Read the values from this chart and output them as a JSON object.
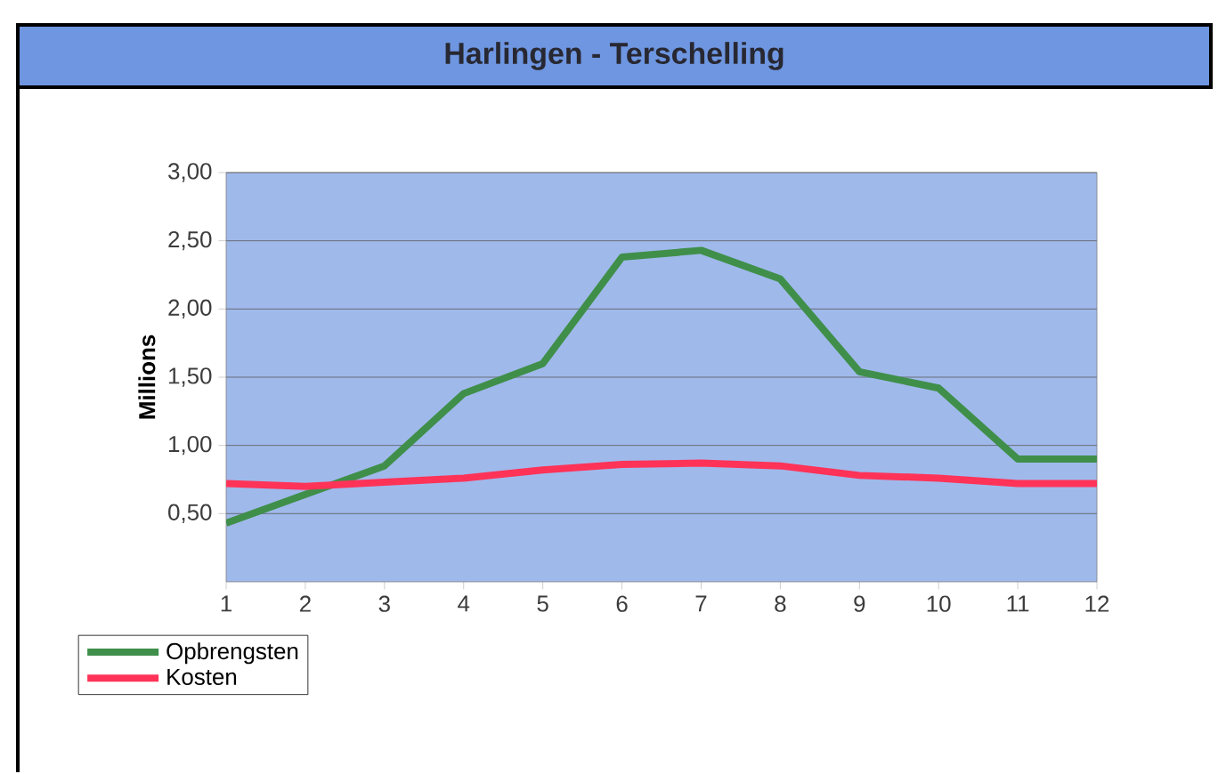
{
  "chart_data": {
    "type": "line",
    "title": "Harlingen - Terschelling",
    "ylabel": "Millions",
    "categories": [
      "1",
      "2",
      "3",
      "4",
      "5",
      "6",
      "7",
      "8",
      "9",
      "10",
      "11",
      "12"
    ],
    "series": [
      {
        "name": "Opbrengsten",
        "color": "#3f8f4a",
        "values": [
          0.43,
          0.64,
          0.85,
          1.38,
          1.6,
          2.38,
          2.43,
          2.22,
          1.54,
          1.42,
          0.9,
          0.9
        ]
      },
      {
        "name": "Kosten",
        "color": "#ff3358",
        "values": [
          0.72,
          0.7,
          0.73,
          0.76,
          0.82,
          0.86,
          0.87,
          0.85,
          0.78,
          0.76,
          0.72,
          0.72
        ]
      }
    ],
    "ylim": [
      0,
      3
    ],
    "yticks": [
      {
        "value": 0.5,
        "label": "0,50"
      },
      {
        "value": 1,
        "label": "1,00"
      },
      {
        "value": 1.5,
        "label": "1,50"
      },
      {
        "value": 2,
        "label": "2,00"
      },
      {
        "value": 2.5,
        "label": "2,50"
      },
      {
        "value": 3,
        "label": "3,00"
      }
    ],
    "grid": "y",
    "legend": "bottom left",
    "marker": "none",
    "line_style": "solid"
  }
}
